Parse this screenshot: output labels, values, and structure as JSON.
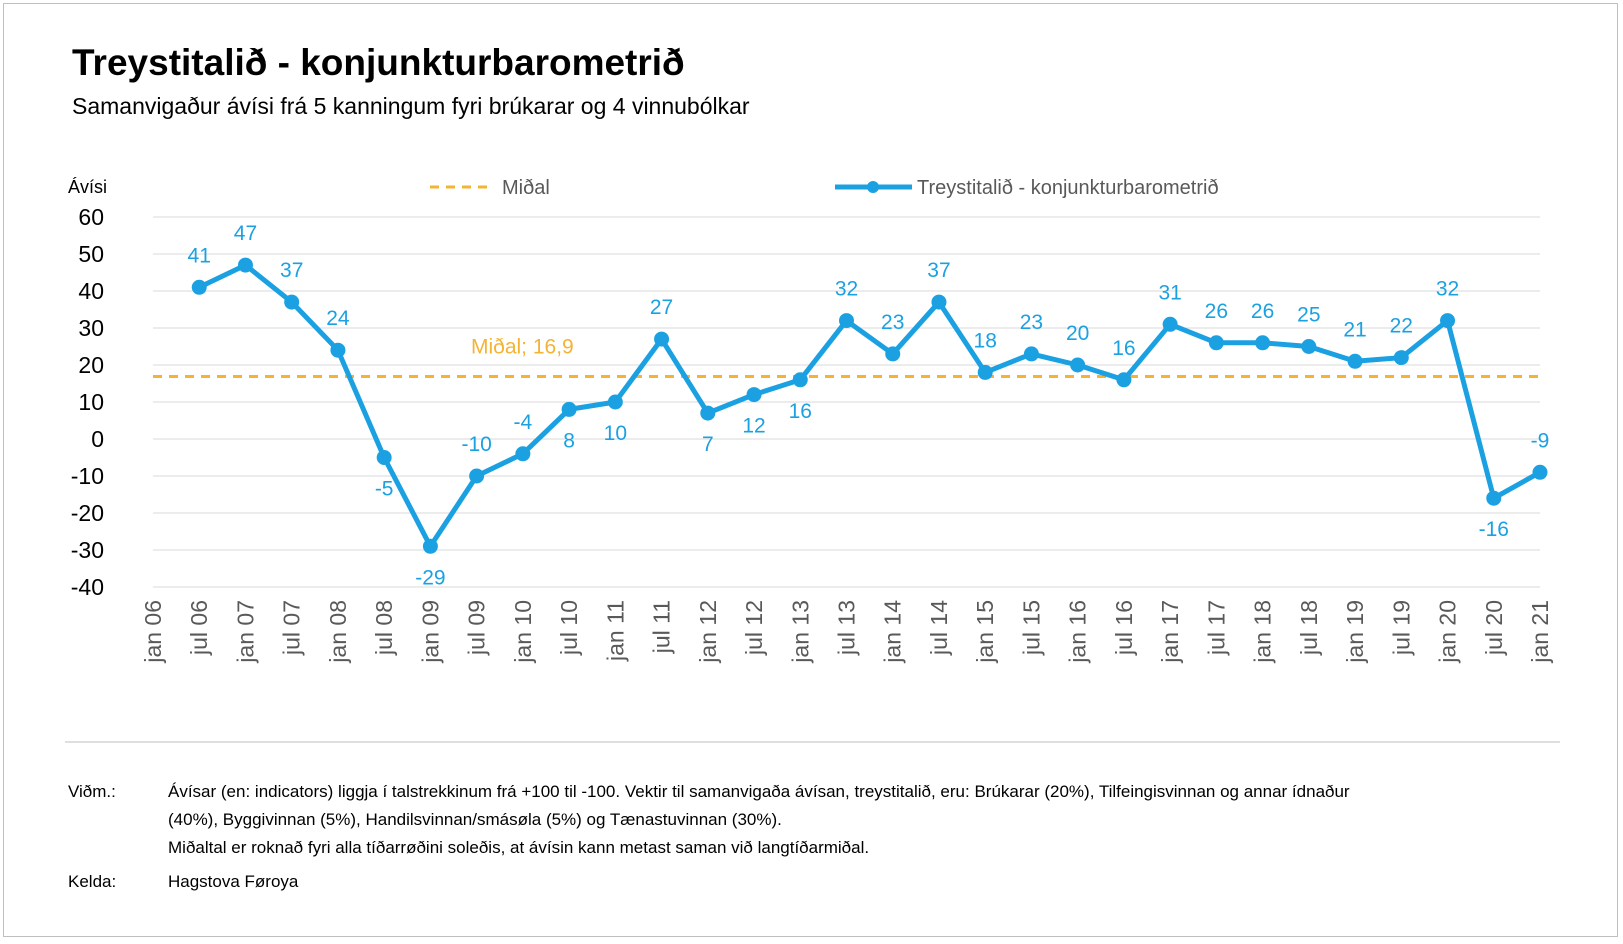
{
  "chart_data": {
    "type": "line",
    "title": "Treystitalið - konjunkturbarometrið",
    "subtitle": "Samanvigaður ávísi frá 5 kanningum fyri brúkarar og 4 vinnubólkar",
    "ylabel": "Ávísi",
    "ylim": [
      -40,
      60
    ],
    "yticks": [
      60,
      50,
      40,
      30,
      20,
      10,
      0,
      -10,
      -20,
      -30,
      -40
    ],
    "grid": true,
    "legend_position": "top",
    "legend": [
      "Miðal",
      "Treystitalið - konjunkturbarometrið"
    ],
    "categories": [
      "jan 06",
      "jul 06",
      "jan 07",
      "jul 07",
      "jan 08",
      "jul 08",
      "jan 09",
      "jul 09",
      "jan 10",
      "jul 10",
      "jan 11",
      "jul 11",
      "jan 12",
      "jul 12",
      "jan 13",
      "jul 13",
      "jan 14",
      "jul 14",
      "jan 15",
      "jul 15",
      "jan 16",
      "jul 16",
      "jan 17",
      "jul 17",
      "jan 18",
      "jul 18",
      "jan 19",
      "jul 19",
      "jan 20",
      "jul 20",
      "jan 21"
    ],
    "series": [
      {
        "name": "Treystitalið - konjunkturbarometrið",
        "color": "#1ba1e2",
        "values": [
          null,
          41,
          47,
          37,
          24,
          -5,
          -29,
          -10,
          -4,
          8,
          10,
          27,
          7,
          12,
          16,
          32,
          23,
          37,
          18,
          23,
          20,
          16,
          31,
          26,
          26,
          25,
          21,
          22,
          32,
          -16,
          -9
        ],
        "labels": [
          null,
          "41",
          "47",
          "37",
          "24",
          "-5",
          "-29",
          "-10",
          "-4",
          "8",
          "10",
          "27",
          "7",
          "12",
          "16",
          "32",
          "23",
          "37",
          "18",
          "23",
          "20",
          "16",
          "31",
          "26",
          "26",
          "25",
          "21",
          "22",
          "32",
          "-16",
          "-9"
        ],
        "label_positions": [
          null,
          "above",
          "above",
          "above",
          "above",
          "below",
          "below",
          "above",
          "above",
          "below",
          "below",
          "above",
          "below",
          "below",
          "below",
          "above",
          "above",
          "above",
          "above",
          "above",
          "above",
          "above",
          "above",
          "above",
          "above",
          "above",
          "above",
          "above",
          "above",
          "below",
          "above"
        ]
      },
      {
        "name": "Miðal",
        "color": "#f5b335",
        "value": 16.9,
        "annotation": "Miðal; 16,9"
      }
    ]
  },
  "notes": {
    "label": "Viðm.:",
    "line1": "Ávísar (en: indicators) liggja í talstrekkinum frá +100 til -100. Vektir til samanvigaða ávísan, treystitalið, eru: Brúkarar (20%), Tilfeingisvinnan og annar ídnaður",
    "line2": "(40%), Byggivinnan (5%), Handilsvinnan/smásøla (5%) og Tænastuvinnan (30%).",
    "line3": "Miðaltal er roknað fyri alla tíðarrøðini soleðis, at ávísin kann metast saman við langtíðarmiðal."
  },
  "source": {
    "label": "Kelda:",
    "value": "Hagstova Føroya"
  }
}
